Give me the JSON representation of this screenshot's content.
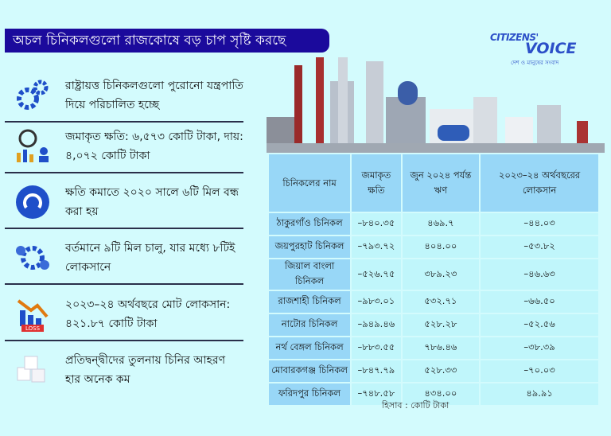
{
  "title": "অচল চিনিকলগুলো রাজকোষে বড় চাপ সৃষ্টি করছে",
  "logo": {
    "line1": "CITIZENS'",
    "line2": "VOICE",
    "tagline": "দেশ ও মানুষের সংবাদ"
  },
  "points": [
    {
      "icon": "gears-icon",
      "text": "রাষ্ট্রায়ত্ত চিনিকলগুলো পুরোনো যন্ত্রপাতি দিয়ে পরিচালিত হচ্ছে"
    },
    {
      "icon": "loss-chart-icon",
      "text": "জমাকৃত ক্ষতি: ৬,৫৭৩ কোটি টাকা, দায়: ৪,০৭২ কোটি টাকা"
    },
    {
      "icon": "power-off-icon",
      "text": "ক্ষতি কমাতে ২০২০ সালে ৬টি মিল বন্ধ করা হয়"
    },
    {
      "icon": "gear-cycle-icon",
      "text": "বর্তমানে ৯টি মিল চালু, যার মধ্যে ৮টিই লোকসানে"
    },
    {
      "icon": "loss-graph-icon",
      "text": "২০২৩–২৪ অর্থবছরে মোট লোকসান: ৪২১.৮৭ কোটি টাকা",
      "badge": "LOSS"
    },
    {
      "icon": "sugar-cubes-icon",
      "text": "প্রতিদ্বন্দ্বীদের তুলনায় চিনির আহরণ হার অনেক কম"
    }
  ],
  "table": {
    "headers": [
      "চিনিকলের নাম",
      "জমাকৃত ক্ষতি",
      "জুন ২০২৪ পর্যন্ত ঋণ",
      "২০২৩–২৪ অর্থবছরের লোকসান"
    ],
    "rows": [
      [
        "ঠাকুরগাঁও চিনিকল",
        "–৮৪০.৩৫",
        "৪৬৯.৭",
        "–৪৪.০৩"
      ],
      [
        "জয়পুরহাট চিনিকল",
        "–৭৯৩.৭২",
        "৪০৪.০০",
        "–৫৩.৮২"
      ],
      [
        "জিয়াল বাংলা চিনিকল",
        "–৫২৬.৭৫",
        "৩৮৯.২৩",
        "–৪৬.৬৩"
      ],
      [
        "রাজশাহী চিনিকল",
        "–৯৮৩.০১",
        "৫৩২.৭১",
        "–৬৬.৫০"
      ],
      [
        "নাটোর চিনিকল",
        "–৯৪৯.৪৬",
        "৫২৮.২৮",
        "–৫২.৫৬"
      ],
      [
        "নর্থ বেঙ্গল চিনিকল",
        "–৮৮৩.৫৫",
        "৭৮৬.৪৬",
        "–৩৮.৩৯"
      ],
      [
        "মোবারকগঞ্জ চিনিকল",
        "–৮৪৭.৭৯",
        "৫২৮.৩৩",
        "–৭০.০৩"
      ],
      [
        "ফরিদপুর চিনিকল",
        "–৭৪৮.৫৮",
        "৪৩৪.০০",
        "৪৯.৯১"
      ]
    ],
    "note": "হিসাব : কোটি টাকা"
  },
  "colors": {
    "background": "#d3fbfd",
    "title_bg": "#1b0a9c",
    "header_bg": "#98d7f7",
    "cell_bg": "#c0f6fb",
    "icon_blue": "#1f4fc9"
  }
}
